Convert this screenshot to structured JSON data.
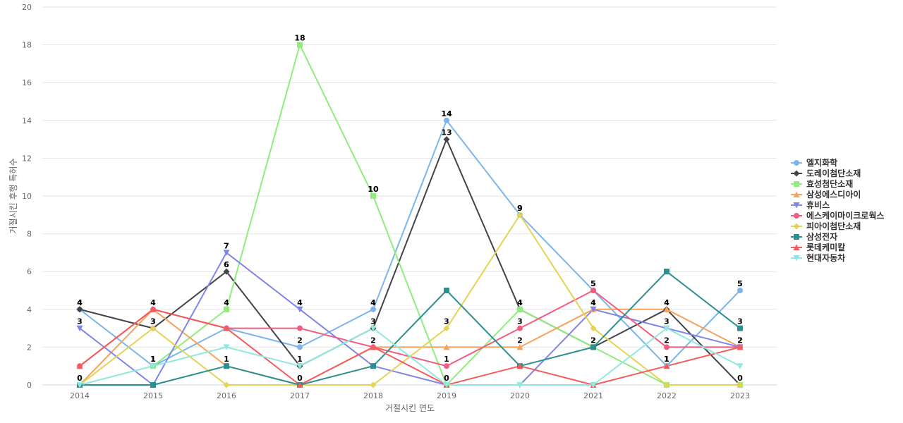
{
  "chart_data": {
    "type": "line",
    "xlabel": "거절시킨 연도",
    "ylabel": "거절시킨 후행 특허수",
    "ylim": [
      0,
      20
    ],
    "y_ticks": [
      0,
      2,
      4,
      6,
      8,
      10,
      12,
      14,
      16,
      18,
      20
    ],
    "grid": true,
    "legend_position": "right",
    "categories": [
      "2014",
      "2015",
      "2016",
      "2017",
      "2018",
      "2019",
      "2020",
      "2021",
      "2022",
      "2023"
    ],
    "series": [
      {
        "name": "엘지화학",
        "color": "#7cb5ec",
        "marker": "circle",
        "values": [
          4,
          1,
          3,
          2,
          4,
          14,
          9,
          5,
          1,
          5
        ]
      },
      {
        "name": "도레이첨단소재",
        "color": "#434348",
        "marker": "diamond",
        "values": [
          4,
          3,
          6,
          1,
          3,
          13,
          4,
          2,
          4,
          0
        ]
      },
      {
        "name": "효성첨단소재",
        "color": "#90ed7d",
        "marker": "square",
        "values": [
          0,
          1,
          4,
          18,
          10,
          0,
          4,
          2,
          0,
          0
        ]
      },
      {
        "name": "삼성에스디아이",
        "color": "#f7a35c",
        "marker": "triangle",
        "values": [
          0,
          4,
          1,
          0,
          2,
          2,
          2,
          4,
          4,
          2
        ]
      },
      {
        "name": "휴비스",
        "color": "#8085e9",
        "marker": "triangle-down",
        "values": [
          3,
          0,
          7,
          4,
          1,
          0,
          0,
          4,
          3,
          2
        ]
      },
      {
        "name": "에스케이마이크로웍스",
        "color": "#f15c80",
        "marker": "circle",
        "values": [
          1,
          4,
          3,
          3,
          2,
          1,
          3,
          5,
          2,
          2
        ]
      },
      {
        "name": "피아이첨단소재",
        "color": "#e4d354",
        "marker": "diamond",
        "values": [
          0,
          3,
          0,
          0,
          0,
          3,
          9,
          3,
          0,
          0
        ]
      },
      {
        "name": "삼성전자",
        "color": "#2b908f",
        "marker": "square",
        "values": [
          0,
          0,
          1,
          0,
          1,
          5,
          1,
          2,
          6,
          3
        ]
      },
      {
        "name": "롯데케미칼",
        "color": "#f45b5b",
        "marker": "triangle",
        "values": [
          1,
          4,
          3,
          0,
          2,
          0,
          1,
          0,
          1,
          2
        ]
      },
      {
        "name": "현대자동차",
        "color": "#91e8e1",
        "marker": "triangle-down",
        "values": [
          0,
          1,
          2,
          1,
          3,
          0,
          0,
          0,
          3,
          1
        ]
      }
    ],
    "data_label_points": [
      [
        0,
        0
      ],
      [
        1,
        0
      ],
      [
        2,
        1
      ],
      [
        3,
        1
      ],
      [
        4,
        0
      ],
      [
        5,
        0
      ],
      [
        6,
        0
      ],
      [
        7,
        0
      ],
      [
        8,
        1
      ],
      [
        9,
        0
      ],
      [
        0,
        4
      ],
      [
        1,
        5
      ],
      [
        2,
        4
      ],
      [
        3,
        7
      ],
      [
        4,
        2
      ],
      [
        5,
        6
      ],
      [
        6,
        6
      ],
      [
        7,
        4
      ],
      [
        8,
        8
      ],
      [
        9,
        7
      ],
      [
        0,
        1
      ],
      [
        1,
        1
      ],
      [
        2,
        1
      ],
      [
        3,
        0
      ],
      [
        4,
        0
      ],
      [
        5,
        0
      ],
      [
        6,
        0
      ],
      [
        7,
        0
      ],
      [
        8,
        0
      ],
      [
        9,
        3
      ],
      [
        0,
        0
      ],
      [
        1,
        1
      ],
      [
        2,
        2
      ],
      [
        3,
        2
      ],
      [
        4,
        2
      ],
      [
        5,
        5
      ],
      [
        6,
        5
      ],
      [
        7,
        1
      ],
      [
        8,
        4
      ],
      [
        9,
        4
      ],
      [
        0,
        2
      ],
      [
        1,
        0
      ],
      [
        2,
        4
      ],
      [
        3,
        4
      ],
      [
        4,
        1
      ],
      [
        5,
        1
      ],
      [
        6,
        1
      ],
      [
        7,
        4
      ],
      [
        8,
        0
      ],
      [
        9,
        3
      ],
      [
        2,
        3
      ],
      [
        4,
        3
      ],
      [
        5,
        2
      ],
      [
        6,
        2
      ],
      [
        7,
        2
      ],
      [
        8,
        3
      ],
      [
        9,
        0
      ],
      [
        6,
        3
      ],
      [
        8,
        5
      ],
      [
        9,
        1
      ]
    ]
  }
}
